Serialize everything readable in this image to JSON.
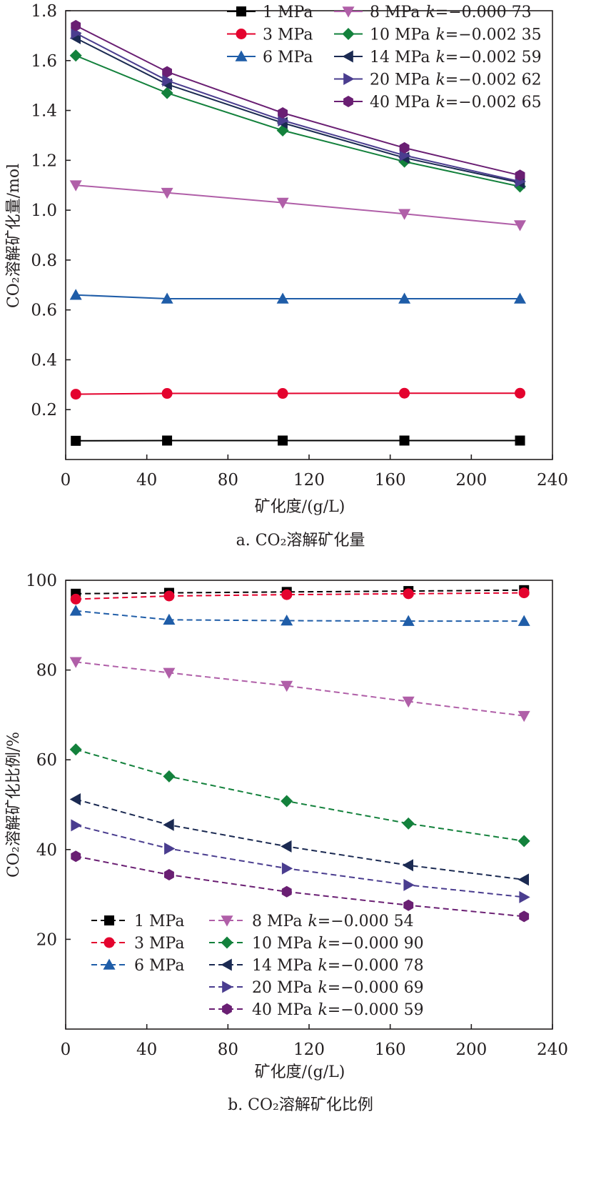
{
  "chart_data": [
    {
      "type": "line",
      "panel": "a",
      "caption": "a. CO₂溶解矿化量",
      "xlabel": "矿化度/(g/L)",
      "ylabel": "CO₂溶解矿化量/mol",
      "xlim": [
        0,
        240
      ],
      "ylim": [
        0,
        1.8
      ],
      "xticks": [
        0,
        40,
        80,
        120,
        160,
        200,
        240
      ],
      "yticks": [
        0.2,
        0.4,
        0.6,
        0.8,
        1.0,
        1.2,
        1.4,
        1.6,
        1.8
      ],
      "ytick_decimals": 1,
      "grid": false,
      "line_style": "solid",
      "legend_position": "top-right",
      "x": [
        5,
        50,
        107,
        167,
        224
      ],
      "series": [
        {
          "name": "1 MPa",
          "k_label": "",
          "color": "#000000",
          "marker": "square",
          "values": [
            0.075,
            0.076,
            0.076,
            0.076,
            0.076
          ]
        },
        {
          "name": "3 MPa",
          "k_label": "",
          "color": "#e4032e",
          "marker": "circle",
          "values": [
            0.262,
            0.265,
            0.265,
            0.266,
            0.266
          ]
        },
        {
          "name": "6 MPa",
          "k_label": "",
          "color": "#1f5da8",
          "marker": "triangle-up",
          "values": [
            0.66,
            0.645,
            0.645,
            0.645,
            0.645
          ]
        },
        {
          "name": "8 MPa",
          "k_label": "=−0.000 73",
          "color": "#b05fa8",
          "marker": "triangle-down",
          "values": [
            1.1,
            1.07,
            1.03,
            0.985,
            0.94
          ]
        },
        {
          "name": "10 MPa",
          "k_label": "=−0.002 35",
          "color": "#13813c",
          "marker": "diamond",
          "values": [
            1.62,
            1.47,
            1.32,
            1.195,
            1.095
          ]
        },
        {
          "name": "14 MPa",
          "k_label": "=−0.002 59",
          "color": "#1b2a52",
          "marker": "triangle-left",
          "values": [
            1.69,
            1.505,
            1.35,
            1.21,
            1.11
          ]
        },
        {
          "name": "20 MPa",
          "k_label": "=−0.002 62",
          "color": "#4a3d8f",
          "marker": "triangle-right",
          "values": [
            1.71,
            1.52,
            1.36,
            1.22,
            1.115
          ]
        },
        {
          "name": "40 MPa",
          "k_label": "=−0.002 65",
          "color": "#6a1f73",
          "marker": "hexagon",
          "values": [
            1.74,
            1.555,
            1.39,
            1.25,
            1.14
          ]
        }
      ]
    },
    {
      "type": "line",
      "panel": "b",
      "caption": "b. CO₂溶解矿化比例",
      "xlabel": "矿化度/(g/L)",
      "ylabel": "CO₂溶解矿化比例/%",
      "xlim": [
        0,
        240
      ],
      "ylim": [
        0,
        100
      ],
      "xticks": [
        0,
        40,
        80,
        120,
        160,
        200,
        240
      ],
      "yticks": [
        20,
        40,
        60,
        80,
        100
      ],
      "ytick_decimals": 0,
      "grid": false,
      "line_style": "dashed",
      "legend_position": "bottom-left",
      "x": [
        5,
        51,
        109,
        169,
        226
      ],
      "series": [
        {
          "name": "1 MPa",
          "k_label": "",
          "color": "#000000",
          "marker": "square",
          "values": [
            97.0,
            97.2,
            97.4,
            97.6,
            97.8
          ]
        },
        {
          "name": "3 MPa",
          "k_label": "",
          "color": "#e4032e",
          "marker": "circle",
          "values": [
            95.8,
            96.5,
            96.8,
            97.0,
            97.2
          ]
        },
        {
          "name": "6 MPa",
          "k_label": "",
          "color": "#1f5da8",
          "marker": "triangle-up",
          "values": [
            93.2,
            91.2,
            91.0,
            90.9,
            90.9
          ]
        },
        {
          "name": "8 MPa",
          "k_label": "=−0.000 54",
          "color": "#b05fa8",
          "marker": "triangle-down",
          "values": [
            81.8,
            79.4,
            76.5,
            73.0,
            69.8
          ]
        },
        {
          "name": "10 MPa",
          "k_label": "=−0.000 90",
          "color": "#13813c",
          "marker": "diamond",
          "values": [
            62.3,
            56.3,
            50.8,
            45.8,
            41.9
          ]
        },
        {
          "name": "14 MPa",
          "k_label": "=−0.000 78",
          "color": "#1b2a52",
          "marker": "triangle-left",
          "values": [
            51.2,
            45.5,
            40.7,
            36.5,
            33.3
          ]
        },
        {
          "name": "20 MPa",
          "k_label": "=−0.000 69",
          "color": "#4a3d8f",
          "marker": "triangle-right",
          "values": [
            45.4,
            40.2,
            35.8,
            32.1,
            29.4
          ]
        },
        {
          "name": "40 MPa",
          "k_label": "=−0.000 59",
          "color": "#6a1f73",
          "marker": "hexagon",
          "values": [
            38.5,
            34.4,
            30.6,
            27.6,
            25.1
          ]
        }
      ]
    }
  ]
}
